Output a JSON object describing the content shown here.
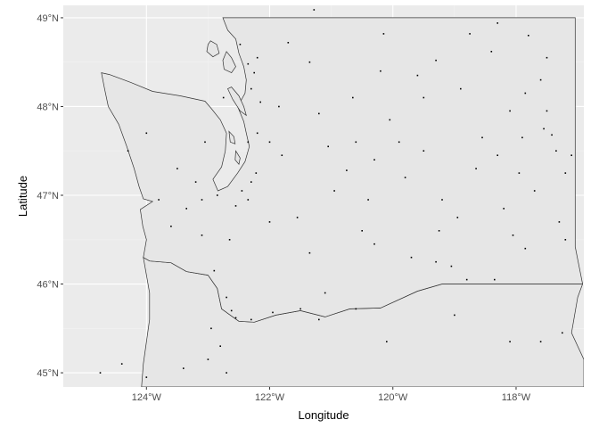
{
  "map": {
    "xlabel": "Longitude",
    "ylabel": "Latitude",
    "xlim": [
      -125.35,
      -116.9
    ],
    "ylim": [
      44.84,
      49.14
    ],
    "x_breaks": [
      {
        "value": -124,
        "label": "124°W"
      },
      {
        "value": -122,
        "label": "122°W"
      },
      {
        "value": -120,
        "label": "120°W"
      },
      {
        "value": -118,
        "label": "118°W"
      }
    ],
    "y_breaks": [
      {
        "value": 45,
        "label": "45°N"
      },
      {
        "value": 46,
        "label": "46°N"
      },
      {
        "value": 47,
        "label": "47°N"
      },
      {
        "value": 48,
        "label": "48°N"
      },
      {
        "value": 49,
        "label": "49°N"
      }
    ],
    "colors": {
      "panel": "#ebebeb",
      "land": "#e6e6e6",
      "grid_major": "#ffffff",
      "grid_minor": "#f2f2f2",
      "outline": "#333333",
      "points": "#000000"
    },
    "washington_boundary": [
      [
        -117.04,
        49.0
      ],
      [
        -122.76,
        49.0
      ],
      [
        -122.68,
        48.86
      ],
      [
        -122.55,
        48.76
      ],
      [
        -122.5,
        48.6
      ],
      [
        -122.42,
        48.45
      ],
      [
        -122.38,
        48.3
      ],
      [
        -122.4,
        48.15
      ],
      [
        -122.52,
        48.0
      ],
      [
        -122.42,
        47.83
      ],
      [
        -122.38,
        47.7
      ],
      [
        -122.33,
        47.55
      ],
      [
        -122.4,
        47.38
      ],
      [
        -122.52,
        47.25
      ],
      [
        -122.68,
        47.1
      ],
      [
        -122.84,
        47.05
      ],
      [
        -122.92,
        47.18
      ],
      [
        -122.78,
        47.32
      ],
      [
        -122.72,
        47.5
      ],
      [
        -122.7,
        47.7
      ],
      [
        -122.8,
        47.85
      ],
      [
        -122.95,
        47.98
      ],
      [
        -123.05,
        48.06
      ],
      [
        -123.45,
        48.12
      ],
      [
        -123.9,
        48.17
      ],
      [
        -124.25,
        48.27
      ],
      [
        -124.6,
        48.36
      ],
      [
        -124.73,
        48.38
      ],
      [
        -124.68,
        48.2
      ],
      [
        -124.62,
        48.0
      ],
      [
        -124.45,
        47.8
      ],
      [
        -124.32,
        47.55
      ],
      [
        -124.2,
        47.3
      ],
      [
        -124.12,
        47.1
      ],
      [
        -124.05,
        46.96
      ],
      [
        -123.9,
        46.93
      ],
      [
        -124.1,
        46.84
      ],
      [
        -124.06,
        46.65
      ],
      [
        -124.0,
        46.5
      ],
      [
        -124.05,
        46.3
      ],
      [
        -123.95,
        46.26
      ],
      [
        -123.6,
        46.24
      ],
      [
        -123.35,
        46.14
      ],
      [
        -123.0,
        46.1
      ],
      [
        -122.85,
        45.95
      ],
      [
        -122.78,
        45.72
      ],
      [
        -122.5,
        45.58
      ],
      [
        -122.25,
        45.57
      ],
      [
        -121.9,
        45.65
      ],
      [
        -121.5,
        45.7
      ],
      [
        -121.1,
        45.63
      ],
      [
        -120.7,
        45.72
      ],
      [
        -120.2,
        45.73
      ],
      [
        -119.6,
        45.92
      ],
      [
        -119.2,
        46.0
      ],
      [
        -118.98,
        46.0
      ],
      [
        -116.92,
        46.0
      ],
      [
        -117.04,
        46.42
      ],
      [
        -117.04,
        49.0
      ]
    ],
    "oregon_boundary": [
      [
        -124.05,
        46.3
      ],
      [
        -124.0,
        46.1
      ],
      [
        -123.95,
        45.9
      ],
      [
        -123.95,
        45.6
      ],
      [
        -124.0,
        45.35
      ],
      [
        -124.05,
        45.1
      ],
      [
        -124.08,
        44.84
      ],
      [
        -116.9,
        44.84
      ],
      [
        -116.9,
        45.15
      ],
      [
        -117.1,
        45.45
      ],
      [
        -117.0,
        45.85
      ],
      [
        -116.92,
        46.0
      ],
      [
        -118.98,
        46.0
      ],
      [
        -119.2,
        46.0
      ],
      [
        -119.6,
        45.92
      ],
      [
        -120.2,
        45.73
      ],
      [
        -120.7,
        45.72
      ],
      [
        -121.1,
        45.63
      ],
      [
        -121.5,
        45.7
      ],
      [
        -121.9,
        45.65
      ],
      [
        -122.25,
        45.57
      ],
      [
        -122.5,
        45.58
      ],
      [
        -122.78,
        45.72
      ],
      [
        -122.85,
        45.95
      ],
      [
        -123.0,
        46.1
      ],
      [
        -123.35,
        46.14
      ],
      [
        -123.6,
        46.24
      ],
      [
        -123.95,
        46.26
      ],
      [
        -124.05,
        46.3
      ]
    ],
    "islands": [
      [
        [
          -122.7,
          48.62
        ],
        [
          -122.62,
          48.55
        ],
        [
          -122.55,
          48.45
        ],
        [
          -122.62,
          48.38
        ],
        [
          -122.74,
          48.42
        ],
        [
          -122.76,
          48.52
        ],
        [
          -122.7,
          48.62
        ]
      ],
      [
        [
          -122.96,
          48.74
        ],
        [
          -122.86,
          48.7
        ],
        [
          -122.82,
          48.6
        ],
        [
          -122.92,
          48.56
        ],
        [
          -123.02,
          48.62
        ],
        [
          -123.0,
          48.7
        ],
        [
          -122.96,
          48.74
        ]
      ],
      [
        [
          -122.62,
          48.22
        ],
        [
          -122.5,
          48.12
        ],
        [
          -122.42,
          48.0
        ],
        [
          -122.38,
          47.9
        ],
        [
          -122.48,
          47.95
        ],
        [
          -122.6,
          48.08
        ],
        [
          -122.68,
          48.2
        ],
        [
          -122.62,
          48.22
        ]
      ],
      [
        [
          -122.55,
          47.5
        ],
        [
          -122.48,
          47.42
        ],
        [
          -122.5,
          47.35
        ],
        [
          -122.56,
          47.4
        ],
        [
          -122.55,
          47.5
        ]
      ],
      [
        [
          -122.66,
          47.72
        ],
        [
          -122.58,
          47.66
        ],
        [
          -122.56,
          47.58
        ],
        [
          -122.64,
          47.6
        ],
        [
          -122.66,
          47.72
        ]
      ]
    ],
    "points": [
      [
        -121.28,
        49.09
      ],
      [
        -118.3,
        48.94
      ],
      [
        -118.75,
        48.82
      ],
      [
        -120.15,
        48.82
      ],
      [
        -121.7,
        48.72
      ],
      [
        -122.48,
        48.7
      ],
      [
        -122.2,
        48.55
      ],
      [
        -122.35,
        48.48
      ],
      [
        -122.25,
        48.38
      ],
      [
        -122.3,
        48.2
      ],
      [
        -122.15,
        48.05
      ],
      [
        -121.85,
        48.0
      ],
      [
        -121.35,
        48.5
      ],
      [
        -120.2,
        48.4
      ],
      [
        -119.6,
        48.35
      ],
      [
        -119.3,
        48.52
      ],
      [
        -118.4,
        48.62
      ],
      [
        -117.8,
        48.8
      ],
      [
        -117.5,
        48.55
      ],
      [
        -117.6,
        48.3
      ],
      [
        -117.85,
        48.15
      ],
      [
        -118.1,
        47.95
      ],
      [
        -119.5,
        48.1
      ],
      [
        -120.05,
        47.85
      ],
      [
        -121.2,
        47.92
      ],
      [
        -120.6,
        47.6
      ],
      [
        -120.75,
        47.28
      ],
      [
        -120.3,
        47.4
      ],
      [
        -119.8,
        47.2
      ],
      [
        -119.5,
        47.5
      ],
      [
        -118.55,
        47.65
      ],
      [
        -118.3,
        47.45
      ],
      [
        -117.9,
        47.65
      ],
      [
        -117.55,
        47.75
      ],
      [
        -117.42,
        47.68
      ],
      [
        -117.35,
        47.5
      ],
      [
        -117.1,
        47.45
      ],
      [
        -117.2,
        47.25
      ],
      [
        -117.7,
        47.05
      ],
      [
        -118.2,
        46.85
      ],
      [
        -118.95,
        46.75
      ],
      [
        -119.25,
        46.6
      ],
      [
        -119.3,
        46.25
      ],
      [
        -119.05,
        46.2
      ],
      [
        -119.7,
        46.3
      ],
      [
        -120.5,
        46.6
      ],
      [
        -120.3,
        46.45
      ],
      [
        -121.35,
        46.35
      ],
      [
        -122.0,
        46.7
      ],
      [
        -122.35,
        46.95
      ],
      [
        -122.55,
        46.88
      ],
      [
        -122.45,
        47.05
      ],
      [
        -122.3,
        47.15
      ],
      [
        -122.22,
        47.25
      ],
      [
        -122.35,
        47.6
      ],
      [
        -122.2,
        47.7
      ],
      [
        -122.0,
        47.6
      ],
      [
        -121.8,
        47.45
      ],
      [
        -122.85,
        47.0
      ],
      [
        -123.1,
        46.95
      ],
      [
        -123.35,
        46.85
      ],
      [
        -123.6,
        46.65
      ],
      [
        -123.8,
        46.95
      ],
      [
        -123.5,
        47.3
      ],
      [
        -123.2,
        47.15
      ],
      [
        -124.0,
        47.7
      ],
      [
        -124.3,
        47.5
      ],
      [
        -123.1,
        46.55
      ],
      [
        -122.9,
        46.15
      ],
      [
        -122.7,
        45.85
      ],
      [
        -122.62,
        45.7
      ],
      [
        -122.55,
        45.62
      ],
      [
        -122.3,
        45.6
      ],
      [
        -121.95,
        45.68
      ],
      [
        -121.5,
        45.72
      ],
      [
        -121.2,
        45.6
      ],
      [
        -120.6,
        45.72
      ],
      [
        -120.1,
        45.35
      ],
      [
        -119.0,
        45.65
      ],
      [
        -118.1,
        45.35
      ],
      [
        -117.6,
        45.35
      ],
      [
        -117.25,
        45.45
      ],
      [
        -122.95,
        45.5
      ],
      [
        -122.8,
        45.3
      ],
      [
        -123.0,
        45.15
      ],
      [
        -122.7,
        45.0
      ],
      [
        -123.4,
        45.05
      ],
      [
        -124.0,
        44.95
      ],
      [
        -124.75,
        45.0
      ],
      [
        -124.4,
        45.1
      ],
      [
        -118.8,
        46.05
      ],
      [
        -118.35,
        46.05
      ],
      [
        -117.85,
        46.4
      ],
      [
        -117.2,
        46.5
      ],
      [
        -117.3,
        46.7
      ],
      [
        -121.1,
        45.9
      ],
      [
        -120.4,
        46.95
      ],
      [
        -119.9,
        47.6
      ],
      [
        -118.9,
        48.2
      ],
      [
        -120.65,
        48.1
      ],
      [
        -121.05,
        47.55
      ],
      [
        -120.95,
        47.05
      ],
      [
        -118.65,
        47.3
      ],
      [
        -119.2,
        46.95
      ],
      [
        -117.5,
        47.95
      ],
      [
        -121.55,
        46.75
      ],
      [
        -122.65,
        46.5
      ],
      [
        -123.05,
        47.6
      ],
      [
        -122.75,
        48.1
      ],
      [
        -117.95,
        47.25
      ],
      [
        -118.05,
        46.55
      ]
    ]
  }
}
